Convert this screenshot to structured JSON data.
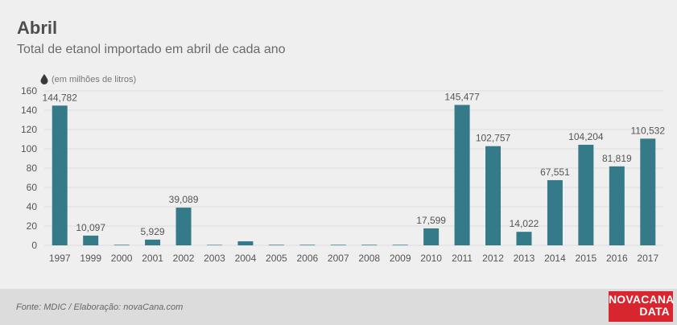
{
  "header": {
    "title": "Abril",
    "subtitle": "Total de etanol importado em abril de cada ano"
  },
  "unit_label": "(em milhões de litros)",
  "footer": {
    "source": "Fonte: MDIC / Elaboração: novaCana.com",
    "logo_line1": "NOVACANA",
    "logo_line2": "DATA"
  },
  "colors": {
    "bar": "#357a89",
    "background": "#efefef",
    "grid": "#dedede",
    "label": "#555555",
    "logo": "#d8262f"
  },
  "icons": {
    "unit": "drop-icon"
  },
  "chart_data": {
    "type": "bar",
    "title": "Abril",
    "subtitle": "Total de etanol importado em abril de cada ano",
    "ylabel": "(em milhões de litros)",
    "xlabel": "",
    "ylim": [
      0,
      160
    ],
    "yticks": [
      0,
      20,
      40,
      60,
      80,
      100,
      120,
      140,
      160
    ],
    "grid": true,
    "categories": [
      "1997",
      "1999",
      "2000",
      "2001",
      "2002",
      "2003",
      "2004",
      "2005",
      "2006",
      "2007",
      "2008",
      "2009",
      "2010",
      "2011",
      "2012",
      "2013",
      "2014",
      "2015",
      "2016",
      "2017"
    ],
    "values": [
      144.782,
      10.097,
      0.6,
      5.929,
      39.089,
      0.5,
      4.2,
      0.6,
      0.6,
      0.6,
      0.6,
      0.6,
      17.599,
      145.477,
      102.757,
      14.022,
      67.551,
      104.204,
      81.819,
      110.532
    ],
    "data_labels": [
      "144,782",
      "10,097",
      "",
      "5,929",
      "39,089",
      "",
      "",
      "",
      "",
      "",
      "",
      "",
      "17,599",
      "145,477",
      "102,757",
      "14,022",
      "67,551",
      "104,204",
      "81,819",
      "110,532"
    ]
  }
}
